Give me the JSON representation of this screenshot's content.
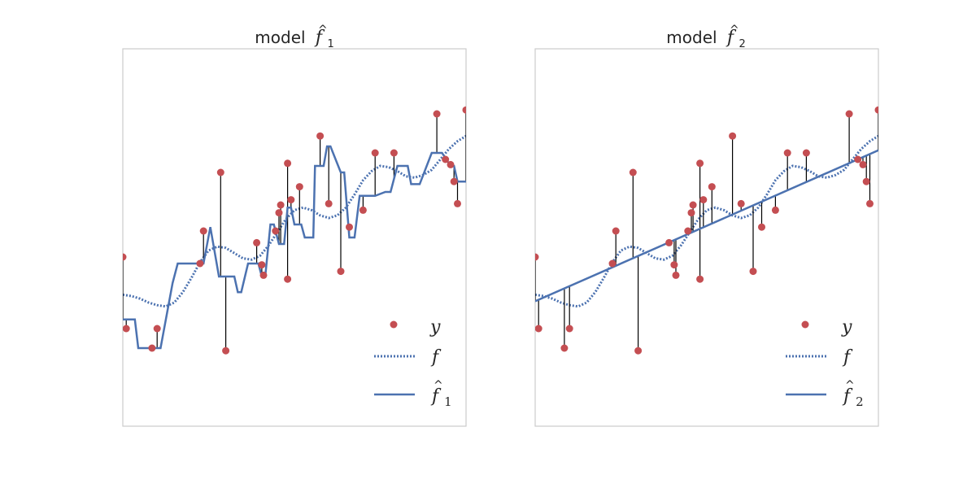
{
  "chart_data": [
    {
      "type": "line",
      "title": "model",
      "title_math": "f",
      "title_sub": "1",
      "xlabel": "",
      "ylabel": "",
      "xlim": [
        0,
        1
      ],
      "ylim": [
        -1.5,
        1.4
      ],
      "grid": false,
      "legend_position": "lower-right",
      "legend": [
        {
          "label": "y",
          "style": "red-dot"
        },
        {
          "label": "f",
          "style": "dotted-line"
        },
        {
          "label": "f",
          "sub": "1",
          "style": "solid-line"
        }
      ],
      "observations": {
        "name": "y",
        "x": [
          0.0,
          0.01,
          0.085,
          0.1,
          0.225,
          0.235,
          0.285,
          0.3,
          0.39,
          0.405,
          0.41,
          0.445,
          0.455,
          0.46,
          0.48,
          0.48,
          0.49,
          0.515,
          0.575,
          0.6,
          0.635,
          0.66,
          0.7,
          0.735,
          0.79,
          0.915,
          0.94,
          0.955,
          0.965,
          0.975,
          1.0
        ],
        "y": [
          -0.2,
          -0.75,
          -0.9,
          -0.75,
          -0.25,
          0.0,
          0.45,
          -0.92,
          -0.09,
          -0.26,
          -0.34,
          0.0,
          0.14,
          0.2,
          0.52,
          -0.37,
          0.24,
          0.34,
          0.73,
          0.21,
          -0.31,
          0.03,
          0.16,
          0.6,
          0.6,
          0.9,
          0.55,
          0.51,
          0.38,
          0.21,
          0.93
        ]
      },
      "true_function": {
        "name": "f",
        "x": [
          0.0,
          0.025,
          0.05,
          0.075,
          0.1,
          0.125,
          0.15,
          0.175,
          0.2,
          0.225,
          0.25,
          0.275,
          0.3,
          0.325,
          0.35,
          0.375,
          0.4,
          0.425,
          0.45,
          0.475,
          0.5,
          0.525,
          0.55,
          0.575,
          0.6,
          0.625,
          0.65,
          0.675,
          0.7,
          0.725,
          0.75,
          0.775,
          0.8,
          0.825,
          0.85,
          0.875,
          0.9,
          0.925,
          0.95,
          0.975,
          1.0
        ],
        "y": [
          -0.49,
          -0.5,
          -0.52,
          -0.55,
          -0.57,
          -0.58,
          -0.55,
          -0.47,
          -0.36,
          -0.24,
          -0.15,
          -0.12,
          -0.13,
          -0.17,
          -0.21,
          -0.22,
          -0.19,
          -0.11,
          -0.01,
          0.09,
          0.16,
          0.18,
          0.16,
          0.12,
          0.1,
          0.12,
          0.18,
          0.28,
          0.39,
          0.46,
          0.5,
          0.49,
          0.46,
          0.42,
          0.41,
          0.43,
          0.47,
          0.55,
          0.63,
          0.69,
          0.73
        ]
      },
      "model": {
        "name": "f1",
        "x": [
          0.0,
          0.035,
          0.045,
          0.11,
          0.145,
          0.16,
          0.21,
          0.235,
          0.255,
          0.28,
          0.29,
          0.325,
          0.335,
          0.345,
          0.365,
          0.395,
          0.405,
          0.415,
          0.43,
          0.44,
          0.455,
          0.47,
          0.48,
          0.49,
          0.5,
          0.52,
          0.53,
          0.555,
          0.56,
          0.585,
          0.595,
          0.605,
          0.635,
          0.645,
          0.66,
          0.675,
          0.69,
          0.735,
          0.765,
          0.78,
          0.8,
          0.83,
          0.84,
          0.865,
          0.9,
          0.93,
          0.955,
          0.965,
          0.975,
          1.0
        ],
        "y": [
          -0.68,
          -0.68,
          -0.9,
          -0.9,
          -0.4,
          -0.25,
          -0.25,
          -0.25,
          0.03,
          -0.35,
          -0.35,
          -0.35,
          -0.47,
          -0.47,
          -0.25,
          -0.25,
          -0.35,
          -0.35,
          0.05,
          0.05,
          -0.1,
          -0.1,
          0.18,
          0.18,
          0.05,
          0.05,
          -0.05,
          -0.05,
          0.5,
          0.5,
          0.65,
          0.65,
          0.45,
          0.45,
          -0.05,
          -0.05,
          0.27,
          0.27,
          0.3,
          0.3,
          0.5,
          0.5,
          0.36,
          0.36,
          0.6,
          0.6,
          0.5,
          0.5,
          0.38,
          0.38
        ]
      }
    },
    {
      "type": "line",
      "title": "model",
      "title_math": "f",
      "title_sub": "2",
      "xlabel": "",
      "ylabel": "",
      "xlim": [
        0,
        1
      ],
      "ylim": [
        -1.5,
        1.4
      ],
      "grid": false,
      "legend_position": "lower-right",
      "legend": [
        {
          "label": "y",
          "style": "red-dot"
        },
        {
          "label": "f",
          "style": "dotted-line"
        },
        {
          "label": "f",
          "sub": "2",
          "style": "solid-line"
        }
      ],
      "observations": {
        "name": "y",
        "x": [
          0.0,
          0.01,
          0.085,
          0.1,
          0.225,
          0.235,
          0.285,
          0.3,
          0.39,
          0.405,
          0.41,
          0.445,
          0.455,
          0.46,
          0.48,
          0.48,
          0.49,
          0.515,
          0.575,
          0.6,
          0.635,
          0.66,
          0.7,
          0.735,
          0.79,
          0.915,
          0.94,
          0.955,
          0.965,
          0.975,
          1.0
        ],
        "y": [
          -0.2,
          -0.75,
          -0.9,
          -0.75,
          -0.25,
          0.0,
          0.45,
          -0.92,
          -0.09,
          -0.26,
          -0.34,
          0.0,
          0.14,
          0.2,
          0.52,
          -0.37,
          0.24,
          0.34,
          0.73,
          0.21,
          -0.31,
          0.03,
          0.16,
          0.6,
          0.6,
          0.9,
          0.55,
          0.51,
          0.38,
          0.21,
          0.93
        ]
      },
      "true_function": {
        "name": "f",
        "x": [
          0.0,
          0.025,
          0.05,
          0.075,
          0.1,
          0.125,
          0.15,
          0.175,
          0.2,
          0.225,
          0.25,
          0.275,
          0.3,
          0.325,
          0.35,
          0.375,
          0.4,
          0.425,
          0.45,
          0.475,
          0.5,
          0.525,
          0.55,
          0.575,
          0.6,
          0.625,
          0.65,
          0.675,
          0.7,
          0.725,
          0.75,
          0.775,
          0.8,
          0.825,
          0.85,
          0.875,
          0.9,
          0.925,
          0.95,
          0.975,
          1.0
        ],
        "y": [
          -0.49,
          -0.5,
          -0.52,
          -0.55,
          -0.57,
          -0.58,
          -0.55,
          -0.47,
          -0.36,
          -0.24,
          -0.15,
          -0.12,
          -0.13,
          -0.17,
          -0.21,
          -0.22,
          -0.19,
          -0.11,
          -0.01,
          0.09,
          0.16,
          0.18,
          0.16,
          0.12,
          0.1,
          0.12,
          0.18,
          0.28,
          0.39,
          0.46,
          0.5,
          0.49,
          0.46,
          0.42,
          0.41,
          0.43,
          0.47,
          0.55,
          0.63,
          0.69,
          0.73
        ]
      },
      "model": {
        "name": "f2",
        "x": [
          0.0,
          1.0
        ],
        "y": [
          -0.54,
          0.62
        ]
      }
    }
  ],
  "colors": {
    "observations": "#c44e52",
    "model_line": "#4c72b0",
    "residual": "#000000",
    "frame": "#cccccc",
    "text": "#262626"
  }
}
